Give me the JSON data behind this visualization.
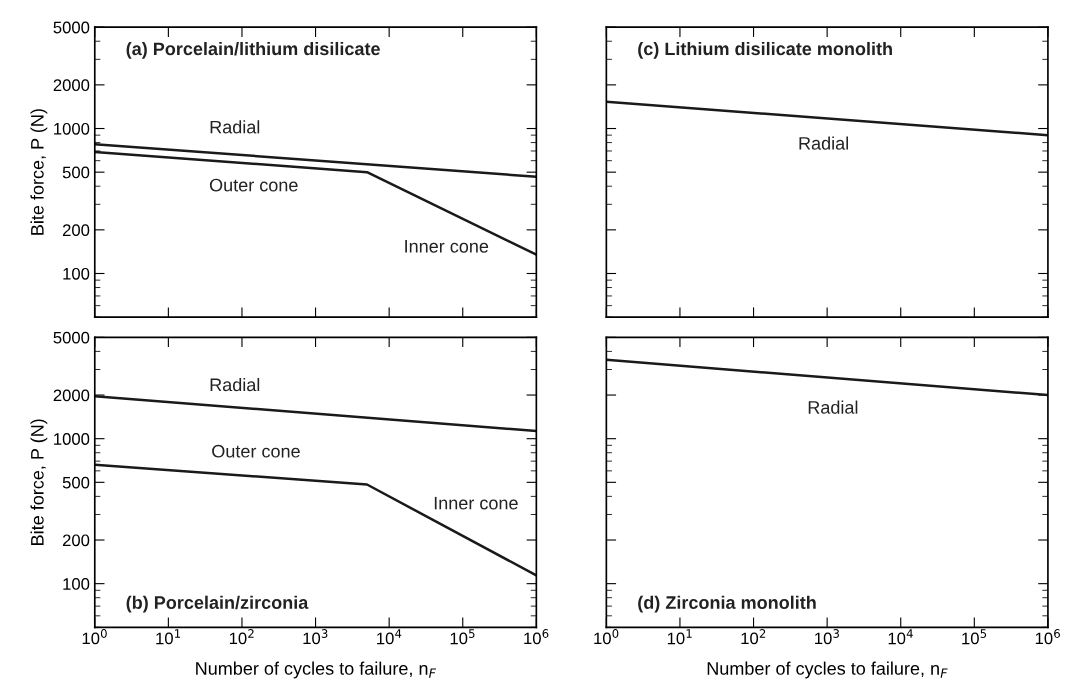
{
  "chart_data": [
    {
      "type": "line",
      "title": "(a) Porcelain/lithium disilicate",
      "ylabel": "Bite force, P (N)",
      "log": "xy",
      "tick_labels": "y",
      "xlim": [
        1,
        1000000
      ],
      "ylim": [
        50,
        5000
      ],
      "xticks": [
        {
          "value": 1,
          "label": null
        },
        {
          "value": 10,
          "label": null
        },
        {
          "value": 100,
          "label": null
        },
        {
          "value": 1000,
          "label": null
        },
        {
          "value": 10000,
          "label": null
        },
        {
          "value": 100000,
          "label": null
        },
        {
          "value": 1000000,
          "label": null
        }
      ],
      "yticks": [
        100,
        200,
        500,
        1000,
        2000,
        5000
      ],
      "grid": false,
      "series": [
        {
          "color": "#1a1a1a",
          "x": [
            1,
            1000000
          ],
          "values": [
            780,
            465
          ]
        },
        {
          "color": "#1a1a1a",
          "x": [
            1,
            5000,
            1000000
          ],
          "values": [
            690,
            500,
            135
          ]
        }
      ],
      "annotations": [
        "Radial",
        "Outer cone",
        "Inner cone"
      ]
    },
    {
      "type": "line",
      "title": "(b) Porcelain/zirconia",
      "xlabel": "Number of cycles to failure, n$_{F}$",
      "ylabel": "Bite force, P (N)",
      "log": "xy",
      "xlim": [
        1,
        1000000
      ],
      "ylim": [
        50,
        5000
      ],
      "xticks": [
        {
          "value": 1,
          "label": "10$^{0}$"
        },
        {
          "value": 10,
          "label": "10$^{1}$"
        },
        {
          "value": 100,
          "label": "10$^{2}$"
        },
        {
          "value": 1000,
          "label": "10$^{3}$"
        },
        {
          "value": 10000,
          "label": "10$^{4}$"
        },
        {
          "value": 100000,
          "label": "10$^{5}$"
        },
        {
          "value": 1000000,
          "label": "10$^{6}$"
        }
      ],
      "yticks": [
        100,
        200,
        500,
        1000,
        2000,
        5000
      ],
      "grid": false,
      "series": [
        {
          "color": "#1a1a1a",
          "x": [
            1,
            1000000
          ],
          "values": [
            1960,
            1130
          ]
        },
        {
          "color": "#1a1a1a",
          "x": [
            1,
            5000,
            1000000
          ],
          "values": [
            660,
            483,
            114
          ]
        }
      ],
      "annotations": [
        "Radial",
        "Outer cone",
        "Inner cone"
      ]
    },
    {
      "type": "line",
      "title": "(c) Lithium disilicate monolith",
      "log": "xy",
      "tick_labels": false,
      "xlim": [
        1,
        1000000
      ],
      "ylim": [
        50,
        5000
      ],
      "xticks": [
        {
          "value": 1,
          "label": null
        },
        {
          "value": 10,
          "label": null
        },
        {
          "value": 100,
          "label": null
        },
        {
          "value": 1000,
          "label": null
        },
        {
          "value": 10000,
          "label": null
        },
        {
          "value": 100000,
          "label": null
        },
        {
          "value": 1000000,
          "label": null
        }
      ],
      "yticks": [
        {
          "value": 100,
          "label": null
        },
        {
          "value": 200,
          "label": null
        },
        {
          "value": 500,
          "label": null
        },
        {
          "value": 1000,
          "label": null
        },
        {
          "value": 2000,
          "label": null
        },
        {
          "value": 5000,
          "label": null
        }
      ],
      "grid": false,
      "series": [
        {
          "color": "#1a1a1a",
          "x": [
            1,
            1000000
          ],
          "values": [
            1530,
            900
          ]
        }
      ],
      "annotations": [
        "Radial"
      ]
    },
    {
      "type": "line",
      "title": "(d) Zirconia monolith",
      "xlabel": "Number of cycles to failure, n$_{F}$",
      "log": "xy",
      "tick_labels": "x",
      "xlim": [
        1,
        1000000
      ],
      "ylim": [
        50,
        5000
      ],
      "xticks": [
        {
          "value": 1,
          "label": "10$^{0}$"
        },
        {
          "value": 10,
          "label": "10$^{1}$"
        },
        {
          "value": 100,
          "label": "10$^{2}$"
        },
        {
          "value": 1000,
          "label": "10$^{3}$"
        },
        {
          "value": 10000,
          "label": "10$^{4}$"
        },
        {
          "value": 100000,
          "label": "10$^{5}$"
        },
        {
          "value": 1000000,
          "label": "10$^{6}$"
        }
      ],
      "yticks": [
        {
          "value": 100,
          "label": null
        },
        {
          "value": 200,
          "label": null
        },
        {
          "value": 500,
          "label": null
        },
        {
          "value": 1000,
          "label": null
        },
        {
          "value": 2000,
          "label": null
        },
        {
          "value": 5000,
          "label": null
        }
      ],
      "grid": false,
      "series": [
        {
          "color": "#1a1a1a",
          "x": [
            1,
            1000000
          ],
          "values": [
            3500,
            2000
          ]
        }
      ],
      "annotations": [
        "Radial"
      ]
    }
  ]
}
